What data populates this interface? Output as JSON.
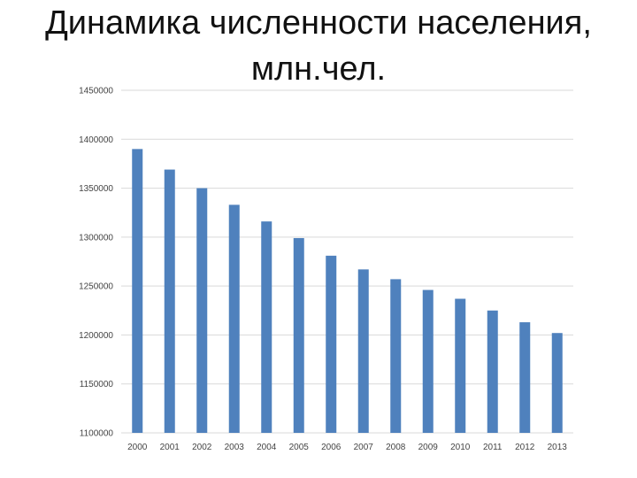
{
  "title": {
    "line1": "Динамика численности населения,",
    "line2": "млн.чел."
  },
  "colors": {
    "bar": "#4f81bd",
    "grid": "#d9d9d9",
    "text": "#444444"
  },
  "chart_data": {
    "type": "bar",
    "categories": [
      "2000",
      "2001",
      "2002",
      "2003",
      "2004",
      "2005",
      "2006",
      "2007",
      "2008",
      "2009",
      "2010",
      "2011",
      "2012",
      "2013"
    ],
    "values": [
      1390000,
      1369000,
      1350000,
      1333000,
      1316000,
      1299000,
      1281000,
      1267000,
      1257000,
      1246000,
      1237000,
      1225000,
      1213000,
      1202000
    ],
    "ylim": [
      1100000,
      1450000
    ],
    "yticks": [
      1100000,
      1150000,
      1200000,
      1250000,
      1300000,
      1350000,
      1400000,
      1450000
    ],
    "grid": true,
    "legend": "none"
  }
}
